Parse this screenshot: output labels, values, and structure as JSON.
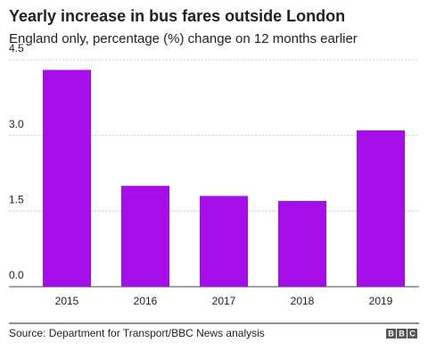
{
  "chart_data": {
    "type": "bar",
    "title": "Yearly increase in bus fares outside London",
    "subtitle": "England only, percentage (%) change on 12 months earlier",
    "categories": [
      "2015",
      "2016",
      "2017",
      "2018",
      "2019"
    ],
    "values": [
      4.3,
      2.0,
      1.8,
      1.7,
      3.1
    ],
    "color": "#a50ee8",
    "ylim": [
      0,
      4.5
    ],
    "yticks": [
      {
        "value": 0,
        "label": "0.0"
      },
      1.5,
      {
        "value": 3,
        "label": "3.0"
      },
      4.5
    ],
    "grid": true,
    "source": "Source: Department for Transport/BBC News analysis",
    "logo_letters": [
      "B",
      "B",
      "C"
    ]
  }
}
